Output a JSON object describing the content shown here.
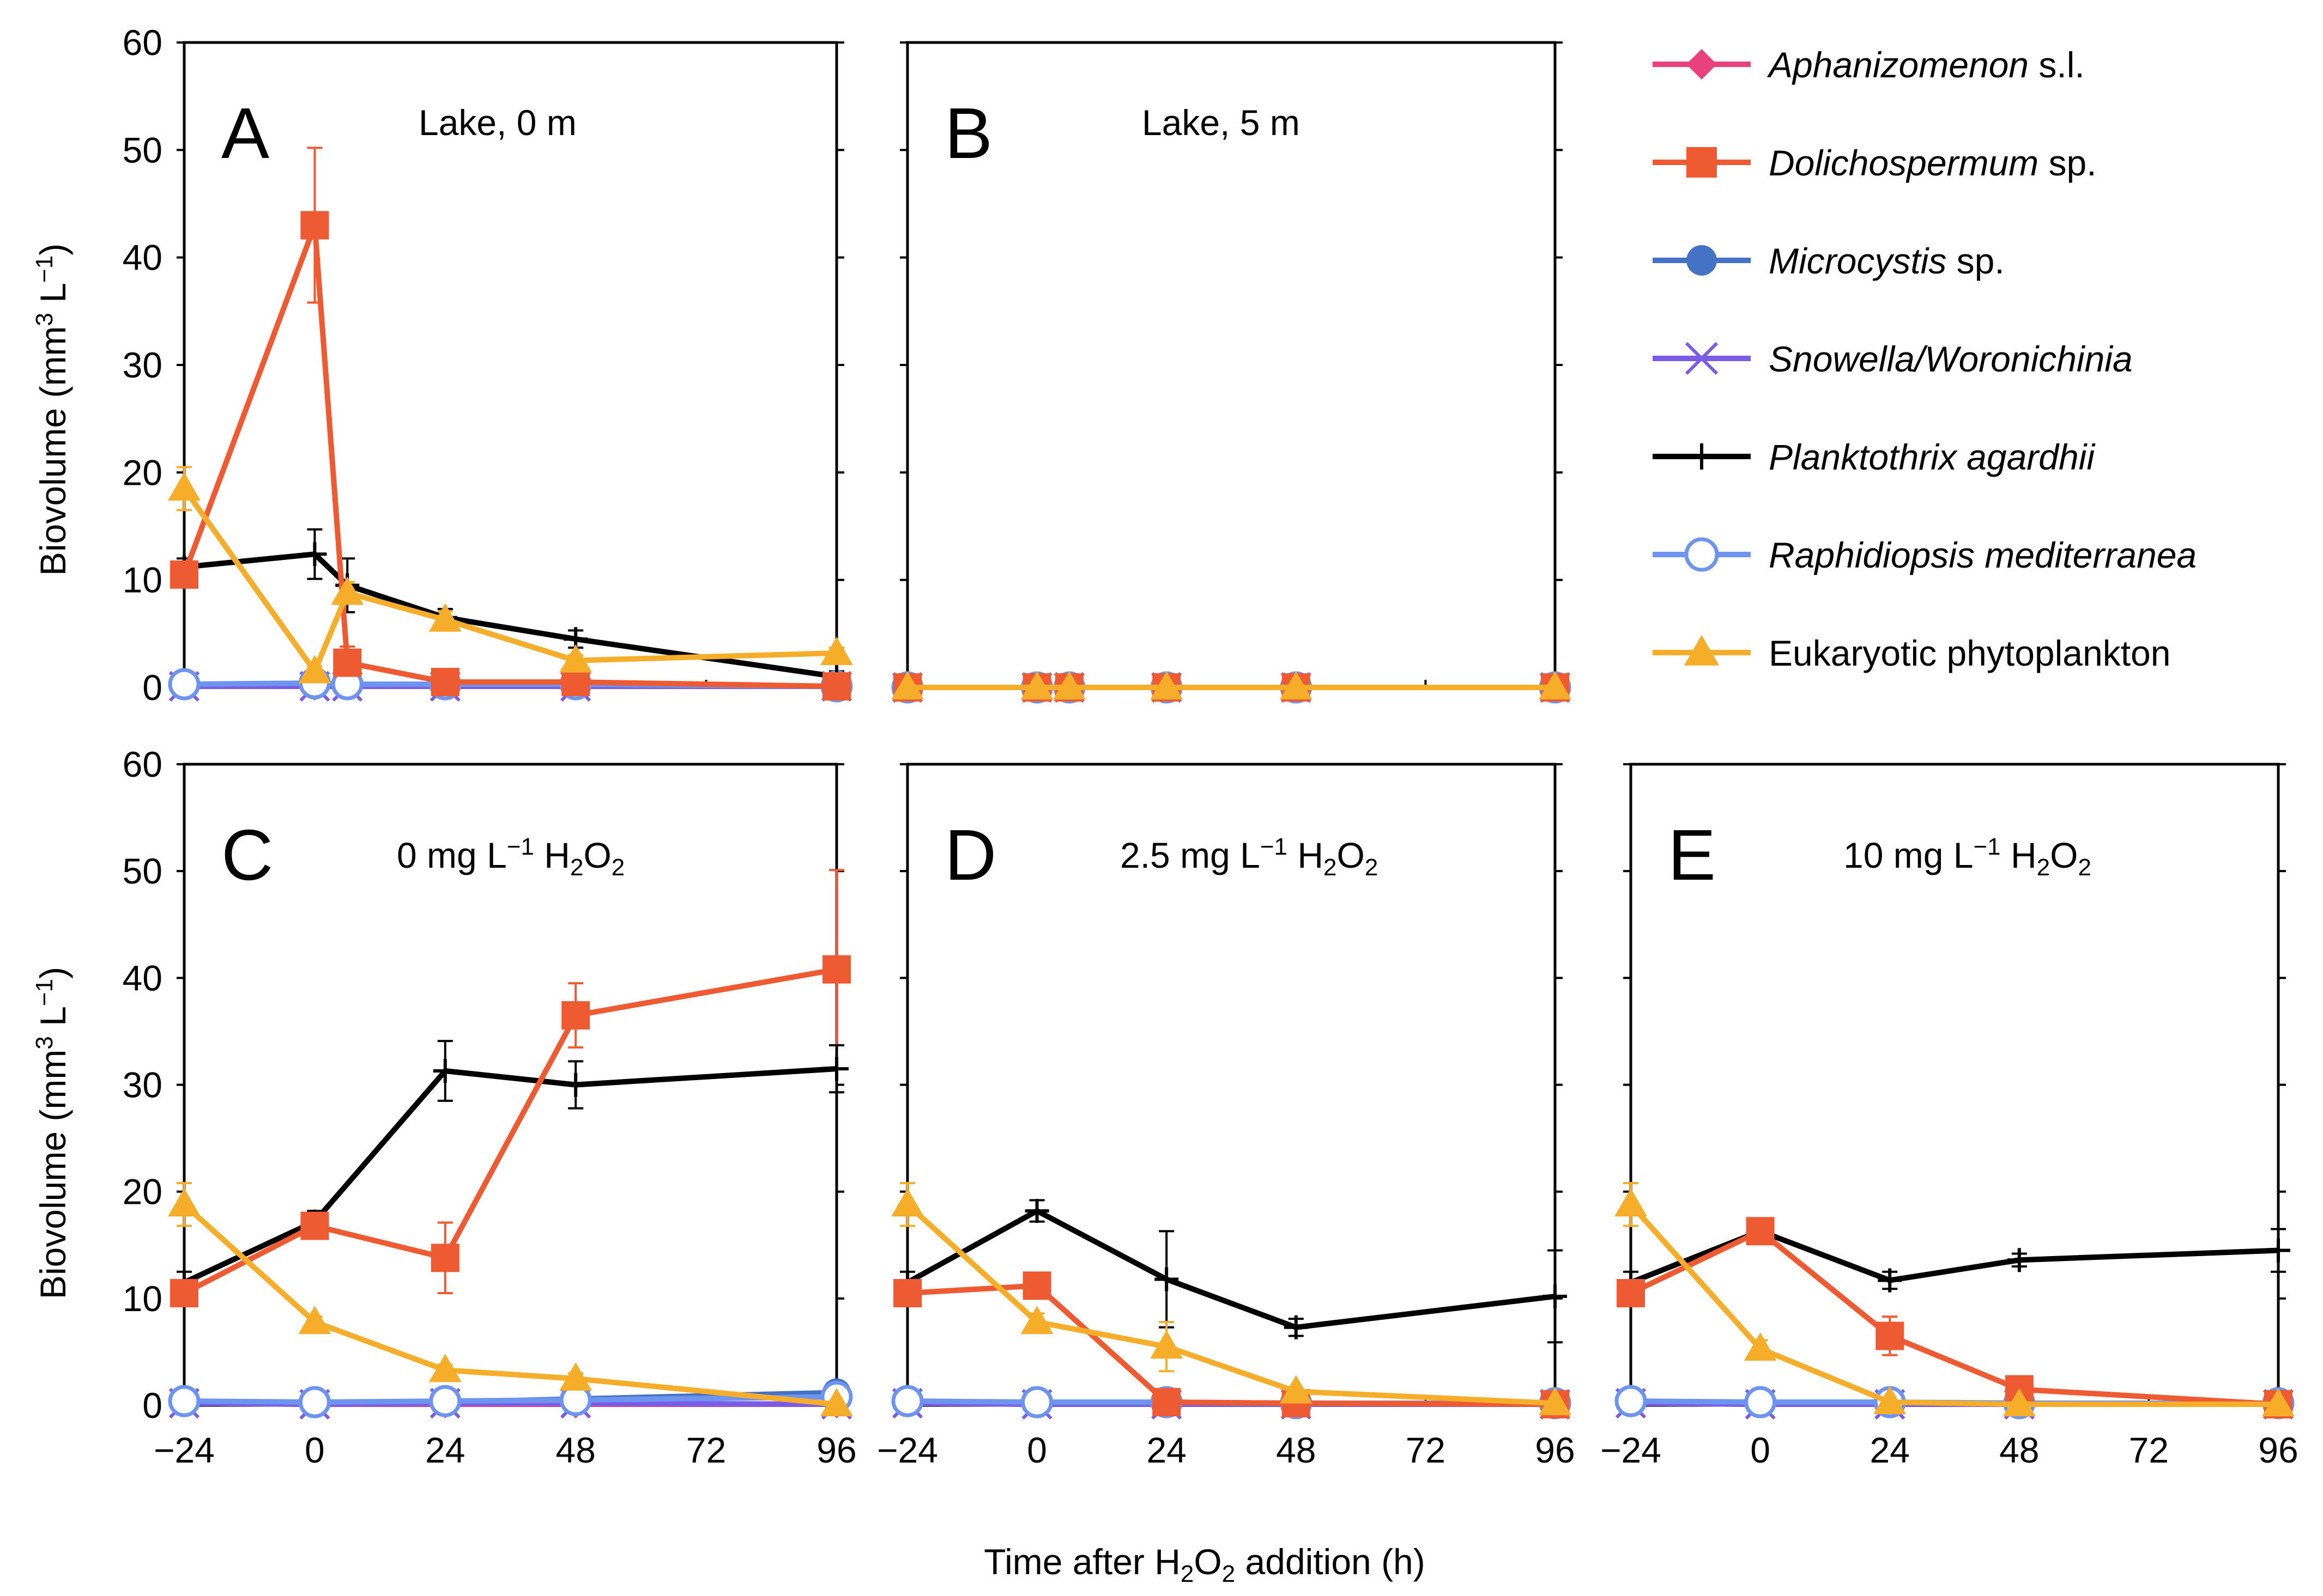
{
  "chart_data": {
    "type": "line",
    "ylabel_main": "Biovolume (mm",
    "ylabel_sup": "3",
    "ylabel_mid": " L",
    "ylabel_sup2": "−1",
    "ylabel_end": ")",
    "xlabel_pre": "Time after H",
    "xlabel_sub1": "2",
    "xlabel_mid": "O",
    "xlabel_sub2": "2",
    "xlabel_post": " addition (h)",
    "x_ticks": [
      "−24",
      "0",
      "24",
      "48",
      "72",
      "96"
    ],
    "x_tick_values": [
      -24,
      0,
      24,
      48,
      72,
      96
    ],
    "y_ticks": [
      "0",
      "10",
      "20",
      "30",
      "40",
      "50",
      "60"
    ],
    "y_tick_values": [
      0,
      10,
      20,
      30,
      40,
      50,
      60
    ],
    "xlim": [
      -24,
      96
    ],
    "ylim": [
      0,
      60
    ],
    "legend": [
      {
        "key": "aph",
        "name": "Aphanizomenon",
        "suffix": " s.l.",
        "italic_part": true,
        "color": "#e8417e",
        "marker": "diamond"
      },
      {
        "key": "dol",
        "name": "Dolichospermum",
        "suffix": " sp.",
        "italic_part": true,
        "color": "#ee5a32",
        "marker": "square"
      },
      {
        "key": "mic",
        "name": "Microcystis",
        "suffix": " sp.",
        "italic_part": true,
        "color": "#4472c4",
        "marker": "circle"
      },
      {
        "key": "sno",
        "name": "Snowella/Woronichinia",
        "suffix": "",
        "italic_part": true,
        "color": "#7b5ce6",
        "marker": "x"
      },
      {
        "key": "pla",
        "name": "Planktothrix agardhii",
        "suffix": "",
        "italic_part": true,
        "color": "#000000",
        "marker": "plus"
      },
      {
        "key": "rap",
        "name": "Raphidiopsis mediterranea",
        "suffix": "",
        "italic_part": true,
        "color": "#6d95f0",
        "marker": "open-circle"
      },
      {
        "key": "euk",
        "name": "Eukaryotic phytoplankton",
        "suffix": "",
        "italic_part": false,
        "color": "#f5ad2a",
        "marker": "triangle"
      }
    ],
    "panels": [
      {
        "id": "A",
        "letter": "A",
        "title": "Lake, 0 m",
        "title_chem": false,
        "x": [
          -24,
          0,
          6,
          24,
          48,
          96
        ],
        "series": {
          "aph": [
            0.1,
            0.1,
            0.1,
            0.1,
            0.1,
            0.1
          ],
          "dol": [
            10.5,
            43.0,
            2.3,
            0.5,
            0.5,
            0.1
          ],
          "mic": [
            0.2,
            0.2,
            0.2,
            0.2,
            0.2,
            0.1
          ],
          "sno": [
            0.1,
            0.1,
            0.1,
            0.1,
            0.1,
            0.1
          ],
          "pla": [
            11.2,
            12.4,
            9.5,
            6.5,
            4.5,
            1.0
          ],
          "rap": [
            0.3,
            0.4,
            0.3,
            0.3,
            0.3,
            0.1
          ],
          "euk": [
            18.5,
            1.5,
            8.8,
            6.3,
            2.5,
            3.2
          ]
        },
        "errors": {
          "dol": [
            1.0,
            7.2,
            1.5,
            0.2,
            0.2,
            0.1
          ],
          "pla": [
            0.8,
            2.3,
            2.5,
            0.8,
            0.8,
            0.5
          ],
          "euk": [
            2.0,
            0.5,
            1.0,
            0.8,
            0.5,
            0.5
          ]
        }
      },
      {
        "id": "B",
        "letter": "B",
        "title": "Lake, 5 m",
        "title_chem": false,
        "x": [
          -24,
          0,
          6,
          24,
          48,
          96
        ],
        "series": {
          "aph": [
            0.0,
            0.0,
            0.0,
            0.0,
            0.0,
            0.0
          ],
          "dol": [
            0.0,
            0.0,
            0.0,
            0.0,
            0.0,
            0.0
          ],
          "mic": [
            0.0,
            0.0,
            0.0,
            0.0,
            0.0,
            0.0
          ],
          "sno": [
            0.0,
            0.0,
            0.0,
            0.0,
            0.0,
            0.0
          ],
          "pla": [
            0.0,
            0.0,
            0.0,
            0.0,
            0.0,
            0.0
          ],
          "rap": [
            0.0,
            0.0,
            0.0,
            0.0,
            0.0,
            0.0
          ],
          "euk": [
            0.0,
            0.0,
            0.0,
            0.0,
            0.0,
            0.0
          ]
        },
        "errors": {}
      },
      {
        "id": "C",
        "letter": "C",
        "title_num": "0 mg L",
        "title_chem": true,
        "x": [
          -24,
          0,
          24,
          48,
          96
        ],
        "series": {
          "aph": [
            0.2,
            0.1,
            0.1,
            0.1,
            0.1
          ],
          "dol": [
            10.5,
            16.8,
            13.8,
            36.5,
            40.8
          ],
          "mic": [
            0.3,
            0.2,
            0.3,
            0.6,
            1.2
          ],
          "sno": [
            0.2,
            0.1,
            0.2,
            0.2,
            0.1
          ],
          "pla": [
            11.5,
            17.2,
            31.3,
            30.0,
            31.5
          ],
          "rap": [
            0.4,
            0.3,
            0.4,
            0.5,
            0.8
          ],
          "euk": [
            18.8,
            7.8,
            3.3,
            2.5,
            0.1
          ]
        },
        "errors": {
          "dol": [
            1.0,
            1.0,
            3.3,
            3.0,
            9.3
          ],
          "pla": [
            1.0,
            1.0,
            2.8,
            2.2,
            2.2
          ],
          "euk": [
            2.0,
            0.5,
            0.5,
            0.5,
            0.2
          ]
        }
      },
      {
        "id": "D",
        "letter": "D",
        "title_num": "2.5 mg L",
        "title_chem": true,
        "x": [
          -24,
          0,
          24,
          48,
          96
        ],
        "series": {
          "aph": [
            0.2,
            0.1,
            0.1,
            0.1,
            0.1
          ],
          "dol": [
            10.5,
            11.2,
            0.3,
            0.2,
            0.1
          ],
          "mic": [
            0.3,
            0.2,
            0.2,
            0.2,
            0.1
          ],
          "sno": [
            0.2,
            0.1,
            0.1,
            0.1,
            0.1
          ],
          "pla": [
            11.5,
            18.2,
            11.8,
            7.3,
            10.2
          ],
          "rap": [
            0.4,
            0.3,
            0.3,
            0.2,
            0.2
          ],
          "euk": [
            18.8,
            7.8,
            5.5,
            1.3,
            0.2
          ]
        },
        "errors": {
          "dol": [
            1.0,
            1.0,
            0.2,
            0.1,
            0.1
          ],
          "pla": [
            1.0,
            1.0,
            4.5,
            0.8,
            4.3
          ],
          "euk": [
            2.0,
            0.8,
            2.3,
            0.3,
            0.1
          ]
        }
      },
      {
        "id": "E",
        "letter": "E",
        "title_num": "10 mg L",
        "title_chem": true,
        "x": [
          -24,
          0,
          24,
          48,
          96
        ],
        "series": {
          "aph": [
            0.2,
            0.1,
            0.1,
            0.1,
            0.1
          ],
          "dol": [
            10.5,
            16.3,
            6.5,
            1.5,
            0.1
          ],
          "mic": [
            0.3,
            0.2,
            0.2,
            0.2,
            0.1
          ],
          "sno": [
            0.2,
            0.1,
            0.1,
            0.1,
            0.1
          ],
          "pla": [
            11.5,
            16.3,
            11.7,
            13.6,
            14.5
          ],
          "rap": [
            0.4,
            0.3,
            0.3,
            0.2,
            0.2
          ],
          "euk": [
            18.8,
            5.3,
            0.3,
            0.1,
            0.1
          ]
        },
        "errors": {
          "dol": [
            1.0,
            1.2,
            1.8,
            0.3,
            0.1
          ],
          "pla": [
            1.0,
            1.0,
            0.8,
            0.6,
            2.0
          ],
          "euk": [
            2.0,
            0.8,
            0.1,
            0.1,
            0.1
          ]
        }
      }
    ]
  }
}
